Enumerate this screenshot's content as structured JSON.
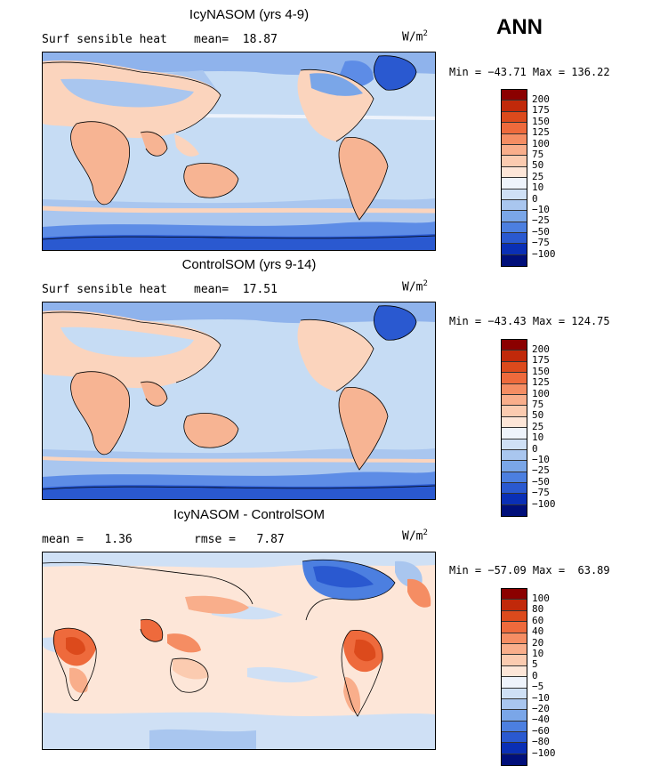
{
  "season": "ANN",
  "panels": [
    {
      "title": "IcyNASOM (yrs 4-9)",
      "left_label": "Surf sensible heat",
      "right_label": "mean=  18.87",
      "units_base": "W/m",
      "units_exp": "2",
      "stats": "Min = −43.71 Max = 136.22",
      "colorbar_labels": [
        "200",
        "175",
        "150",
        "125",
        "100",
        "75",
        "50",
        "25",
        "10",
        "0",
        "−10",
        "−25",
        "−50",
        "−75",
        "−100"
      ]
    },
    {
      "title": "ControlSOM (yrs 9-14)",
      "left_label": "Surf sensible heat",
      "right_label": "mean=  17.51",
      "units_base": "W/m",
      "units_exp": "2",
      "stats": "Min = −43.43 Max = 124.75",
      "colorbar_labels": [
        "200",
        "175",
        "150",
        "125",
        "100",
        "75",
        "50",
        "25",
        "10",
        "0",
        "−10",
        "−25",
        "−50",
        "−75",
        "−100"
      ]
    },
    {
      "title": "IcyNASOM - ControlSOM",
      "left_label": "mean =   1.36",
      "right_label": "rmse =   7.87",
      "units_base": "W/m",
      "units_exp": "2",
      "stats": "Min = −57.09 Max =  63.89",
      "colorbar_labels": [
        "100",
        "80",
        "60",
        "40",
        "20",
        "10",
        "5",
        "0",
        "−5",
        "−10",
        "−20",
        "−40",
        "−60",
        "−80",
        "−100"
      ]
    }
  ],
  "colorbar_colors": [
    "#8b0000",
    "#c1290a",
    "#dc4a1c",
    "#ee6a3c",
    "#f58d63",
    "#f9ae8b",
    "#fbcbb0",
    "#fde6d8",
    "#eef3fb",
    "#cfe0f5",
    "#a9c6ef",
    "#7aa6e8",
    "#4c7fe0",
    "#2a59d0",
    "#0a2fb5",
    "#000f7a"
  ],
  "colors": {
    "ocean_light": "#c6dcf4",
    "ocean_mid": "#a9c6ef",
    "ocean_deep": "#5d8ce6",
    "land_warm": "#f7b493",
    "land_light": "#fbd4bd",
    "diff_neutral": "#fde6d8"
  }
}
